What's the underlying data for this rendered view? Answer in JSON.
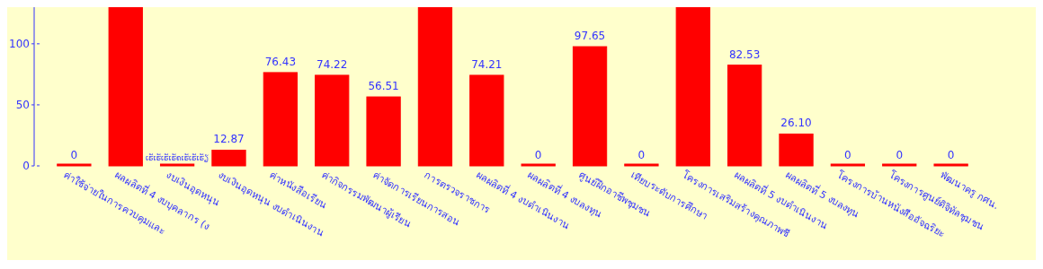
{
  "chart_data": {
    "type": "bar",
    "categories": [
      "ค่าใช้จ่ายในการควบคุมและ",
      "ผลผลิตที่ 4 งบบุคลากร (ง",
      "งบเงินอุดหนุน",
      "งบเงินอุดหนุน งบดำเนินงาน",
      "ค่าหนังสือเรียน",
      "ค่ากิจกรรมพัฒนาผู้เรียน",
      "ค่าจัดการเรียนการสอน",
      "การตรวจราชการ",
      "ผลผลิตที่ 4 งบดำเนินงาน",
      "ผลผลิตที่ 4 งบลงทุน",
      "ศูนย์ฝึกอาชีพชุมชน",
      "เทียบระดับการศึกษา",
      "โครงการเสริมสร้างคุณภาพชี",
      "ผลผลิตที่ 5 งบดำเนินงาน",
      "ผลผลิตที่ 5 งบลงทุน",
      "โครงการบ้านหนังสืออัจฉริยะ",
      "โครงการศูนย์ดิจิทัลชุมชน",
      "พัฒนาครู กศน."
    ],
    "values": [
      0,
      130,
      0,
      12.87,
      76.43,
      74.22,
      56.51,
      130,
      74.21,
      0,
      97.65,
      0,
      130,
      82.53,
      26.1,
      0,
      0,
      0
    ],
    "value_labels": [
      "0",
      null,
      "ເຮັເຮັເຮັເຮັຄເຮັເຮັເຮັຽ",
      "12.87",
      "76.43",
      "74.22",
      "56.51",
      null,
      "74.21",
      "0",
      "97.65",
      "0",
      null,
      "82.53",
      "26.10",
      "0",
      "0",
      "0"
    ],
    "color": "#ff0000",
    "ylim": [
      0,
      130
    ],
    "yticks": [
      0,
      50,
      100
    ],
    "grid": false
  }
}
